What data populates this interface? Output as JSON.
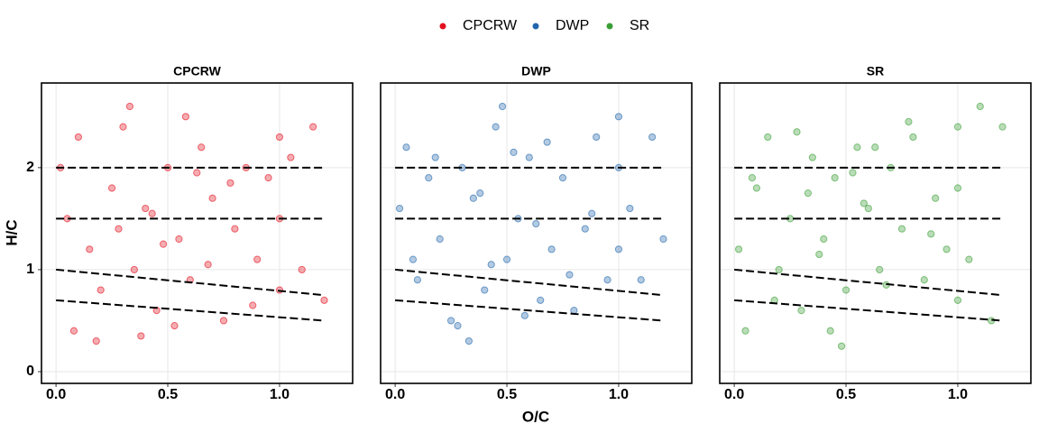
{
  "chart_data": [
    {
      "type": "scatter",
      "title": "CPCRW",
      "ylabel": "H/C",
      "xlim": [
        -0.065,
        1.327
      ],
      "ylim": [
        -0.115,
        2.83
      ],
      "xticks": [
        {
          "value": 0,
          "label": "0.0"
        },
        0.5,
        {
          "value": 1,
          "label": "1.0"
        }
      ],
      "yticks": [
        0,
        1,
        2
      ],
      "grid": true,
      "series": [
        {
          "name": "CPCRW",
          "color": "#e3101f",
          "x": [
            0.02,
            0.05,
            0.1,
            0.15,
            0.2,
            0.25,
            0.3,
            0.35,
            0.4,
            0.45,
            0.5,
            0.55,
            0.6,
            0.65,
            0.7,
            0.75,
            0.8,
            0.85,
            0.9,
            0.95,
            1.0,
            1.0,
            1.0,
            1.05,
            1.1,
            1.15,
            1.2,
            0.08,
            0.18,
            0.28,
            0.38,
            0.48,
            0.58,
            0.68,
            0.78,
            0.88,
            0.33,
            0.43,
            0.53,
            0.63
          ],
          "y": [
            2.0,
            1.5,
            2.3,
            1.2,
            0.8,
            1.8,
            2.4,
            1.0,
            1.6,
            0.6,
            2.0,
            1.3,
            0.9,
            2.2,
            1.7,
            0.5,
            1.4,
            2.0,
            1.1,
            1.9,
            2.3,
            1.5,
            0.8,
            2.1,
            1.0,
            2.4,
            0.7,
            0.4,
            0.3,
            1.4,
            0.35,
            1.25,
            2.5,
            1.05,
            1.85,
            0.65,
            2.6,
            1.55,
            0.45,
            1.95
          ]
        }
      ],
      "reference_lines": [
        {
          "x": [
            0,
            1.2
          ],
          "y": [
            2,
            2
          ]
        },
        {
          "x": [
            0,
            1.2
          ],
          "y": [
            1.5,
            1.5
          ]
        },
        {
          "x": [
            0,
            1.2
          ],
          "y": [
            1,
            0.75
          ]
        },
        {
          "x": [
            0,
            1.2
          ],
          "y": [
            0.7,
            0.5
          ]
        }
      ]
    },
    {
      "type": "scatter",
      "title": "DWP",
      "xlabel": "O/C",
      "xlim": [
        -0.065,
        1.327
      ],
      "ylim": [
        -0.115,
        2.83
      ],
      "xticks": [
        {
          "value": 0,
          "label": "0.0"
        },
        0.5,
        {
          "value": 1,
          "label": "1.0"
        }
      ],
      "yticks": [
        0,
        1,
        2
      ],
      "grid": true,
      "series": [
        {
          "name": "DWP",
          "color": "#2166ac",
          "x": [
            0.02,
            0.05,
            0.1,
            0.15,
            0.2,
            0.25,
            0.3,
            0.35,
            0.4,
            0.45,
            0.5,
            0.55,
            0.6,
            0.65,
            0.7,
            0.75,
            0.8,
            0.85,
            0.9,
            0.95,
            1.0,
            1.0,
            1.0,
            1.05,
            1.1,
            1.15,
            1.2,
            0.08,
            0.18,
            0.28,
            0.38,
            0.48,
            0.58,
            0.68,
            0.78,
            0.88,
            0.33,
            0.43,
            0.53,
            0.63
          ],
          "y": [
            1.6,
            2.2,
            0.9,
            1.9,
            1.3,
            0.5,
            2.0,
            1.7,
            0.8,
            2.4,
            1.1,
            1.5,
            2.1,
            0.7,
            1.2,
            1.9,
            0.6,
            1.4,
            2.3,
            0.9,
            2.0,
            2.5,
            1.2,
            1.6,
            0.9,
            2.3,
            1.3,
            1.1,
            2.1,
            0.45,
            1.75,
            2.6,
            0.55,
            2.25,
            0.95,
            1.55,
            0.3,
            1.05,
            2.15,
            1.45
          ]
        }
      ],
      "reference_lines": [
        {
          "x": [
            0,
            1.2
          ],
          "y": [
            2,
            2
          ]
        },
        {
          "x": [
            0,
            1.2
          ],
          "y": [
            1.5,
            1.5
          ]
        },
        {
          "x": [
            0,
            1.2
          ],
          "y": [
            1,
            0.75
          ]
        },
        {
          "x": [
            0,
            1.2
          ],
          "y": [
            0.7,
            0.5
          ]
        }
      ]
    },
    {
      "type": "scatter",
      "title": "SR",
      "xlim": [
        -0.065,
        1.327
      ],
      "ylim": [
        -0.115,
        2.83
      ],
      "xticks": [
        {
          "value": 0,
          "label": "0.0"
        },
        0.5,
        {
          "value": 1,
          "label": "1.0"
        }
      ],
      "yticks": [
        0,
        1,
        2
      ],
      "grid": true,
      "series": [
        {
          "name": "SR",
          "color": "#3a9e35",
          "x": [
            0.02,
            0.05,
            0.1,
            0.15,
            0.2,
            0.25,
            0.3,
            0.35,
            0.4,
            0.45,
            0.5,
            0.55,
            0.6,
            0.65,
            0.7,
            0.75,
            0.8,
            0.85,
            0.9,
            0.95,
            1.0,
            1.0,
            1.0,
            1.05,
            1.1,
            1.15,
            1.2,
            0.08,
            0.18,
            0.28,
            0.38,
            0.48,
            0.58,
            0.68,
            0.78,
            0.88,
            0.33,
            0.43,
            0.53,
            0.63
          ],
          "y": [
            1.2,
            0.4,
            1.8,
            2.3,
            1.0,
            1.5,
            0.6,
            2.1,
            1.3,
            1.9,
            0.8,
            2.2,
            1.6,
            1.0,
            2.0,
            1.4,
            2.3,
            0.9,
            1.7,
            1.2,
            2.4,
            0.7,
            1.8,
            1.1,
            2.6,
            0.5,
            2.4,
            1.9,
            0.7,
            2.35,
            1.15,
            0.25,
            1.65,
            0.85,
            2.45,
            1.35,
            1.75,
            0.4,
            1.95,
            2.2
          ]
        }
      ],
      "reference_lines": [
        {
          "x": [
            0,
            1.2
          ],
          "y": [
            2,
            2
          ]
        },
        {
          "x": [
            0,
            1.2
          ],
          "y": [
            1.5,
            1.5
          ]
        },
        {
          "x": [
            0,
            1.2
          ],
          "y": [
            1,
            0.75
          ]
        },
        {
          "x": [
            0,
            1.2
          ],
          "y": [
            0.7,
            0.5
          ]
        }
      ]
    }
  ]
}
